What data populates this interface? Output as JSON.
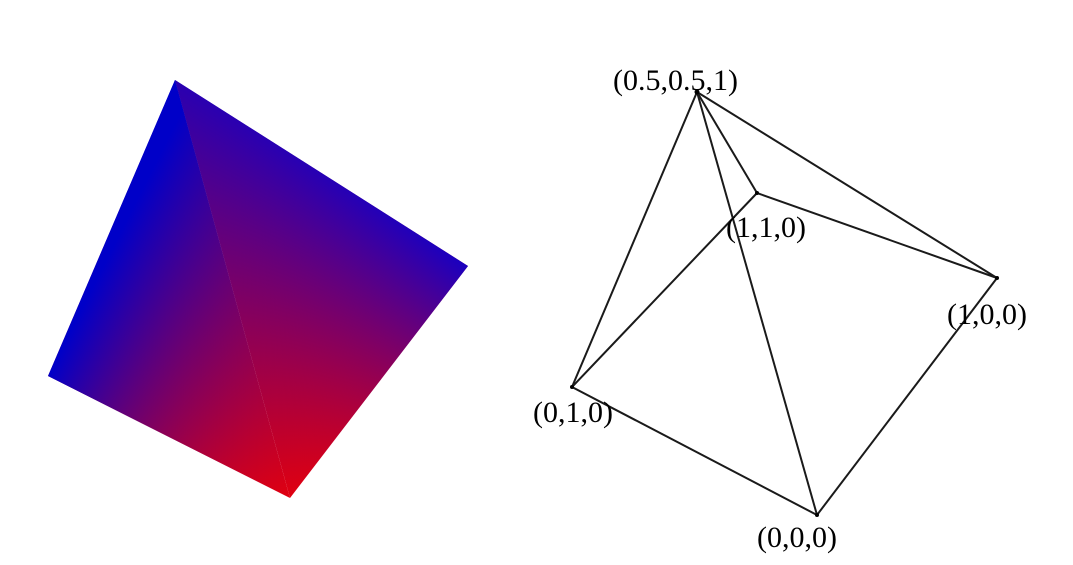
{
  "colors": {
    "apex": "#0000cc",
    "corner_blue_left": "#0000c8",
    "corner_blue_right": "#1a00c0",
    "corner_red": "#e00010",
    "edge_color": "#1a1a1a",
    "background": "#ffffff"
  },
  "wireframe": {
    "vertices": [
      {
        "id": "apex",
        "label": "(0.5,0.5,1)"
      },
      {
        "id": "v110",
        "label": "(1,1,0)"
      },
      {
        "id": "v100",
        "label": "(1,0,0)"
      },
      {
        "id": "v010",
        "label": "(0,1,0)"
      },
      {
        "id": "v000",
        "label": "(0,0,0)"
      }
    ]
  }
}
